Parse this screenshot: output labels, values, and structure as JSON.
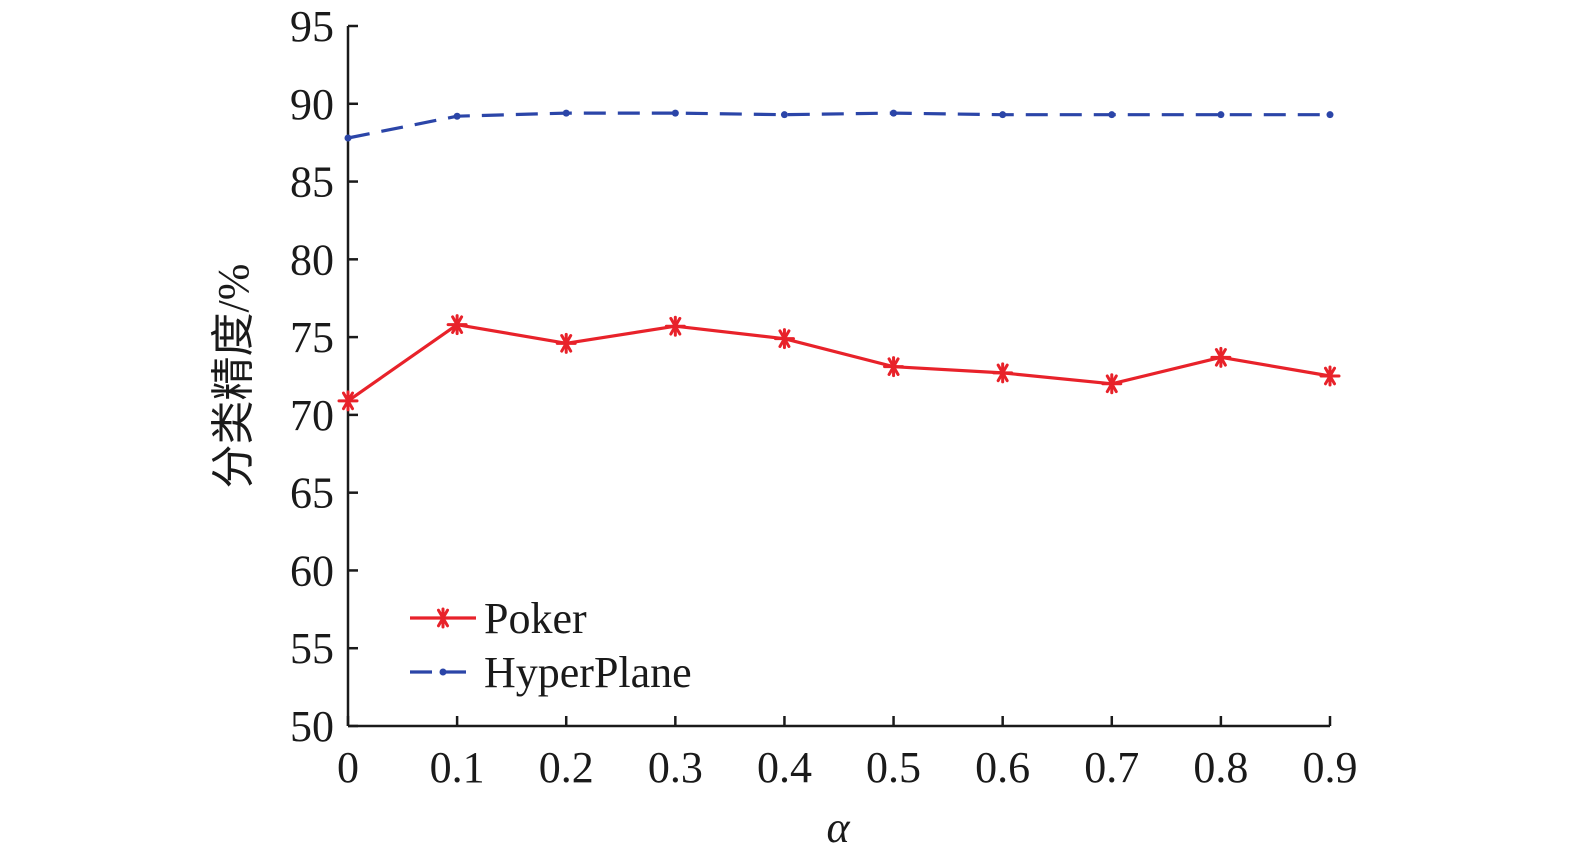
{
  "chart_data": {
    "type": "line",
    "title": "",
    "xlabel": "α",
    "ylabel": "分类精度/%",
    "x": [
      0,
      0.1,
      0.2,
      0.3,
      0.4,
      0.5,
      0.6,
      0.7,
      0.8,
      0.9
    ],
    "x_tick_labels": [
      "0",
      "0.1",
      "0.2",
      "0.3",
      "0.4",
      "0.5",
      "0.6",
      "0.7",
      "0.8",
      "0.9"
    ],
    "xlim": [
      0,
      0.9
    ],
    "ylim": [
      50,
      95
    ],
    "y_ticks": [
      50,
      55,
      60,
      65,
      70,
      75,
      80,
      85,
      90,
      95
    ],
    "y_tick_labels": [
      "50",
      "55",
      "60",
      "65",
      "70",
      "75",
      "80",
      "85",
      "90",
      "95"
    ],
    "grid": false,
    "legend_position": "bottom-left",
    "series": [
      {
        "name": "Poker",
        "color": "#e8222a",
        "line_style": "solid",
        "marker": "asterisk",
        "values": [
          70.9,
          75.8,
          74.6,
          75.7,
          74.9,
          73.1,
          72.7,
          72.0,
          73.7,
          72.5
        ]
      },
      {
        "name": "HyperPlane",
        "color": "#2b45a8",
        "line_style": "dashed",
        "marker": "dot",
        "values": [
          87.8,
          89.2,
          89.4,
          89.4,
          89.3,
          89.4,
          89.3,
          89.3,
          89.3,
          89.3
        ]
      }
    ]
  }
}
